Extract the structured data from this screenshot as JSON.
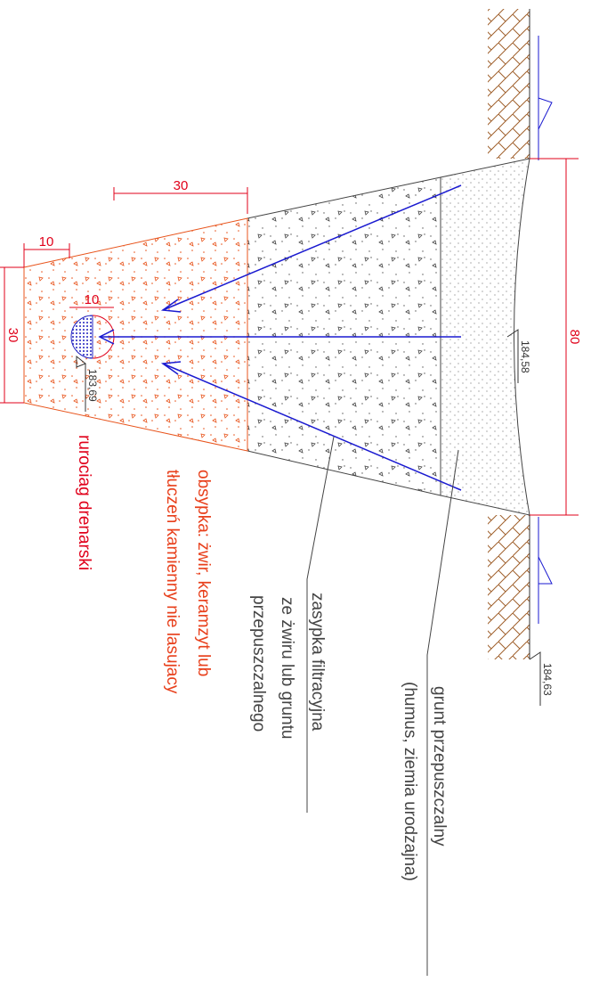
{
  "dimensions": {
    "top_width": "30",
    "bottom_width": "10",
    "pipe_cover": "10",
    "bottom_height": "30",
    "depth": "80"
  },
  "elevations": {
    "trench_top": "184,58",
    "pipe": "183,69",
    "ground": "184,63"
  },
  "labels": {
    "pipe": "rurociag drenarski",
    "bedding": [
      "obsypka: żwir, keramzyt lub",
      "tłuczeń kamienny nie lasujacy"
    ],
    "backfill": [
      "zasypka filtracyjna",
      "ze żwiru lub gruntu",
      "przepuszczalnego"
    ],
    "topsoil": [
      "grunt przepuszczalny",
      "(humus, ziemia urodzajna)"
    ]
  }
}
